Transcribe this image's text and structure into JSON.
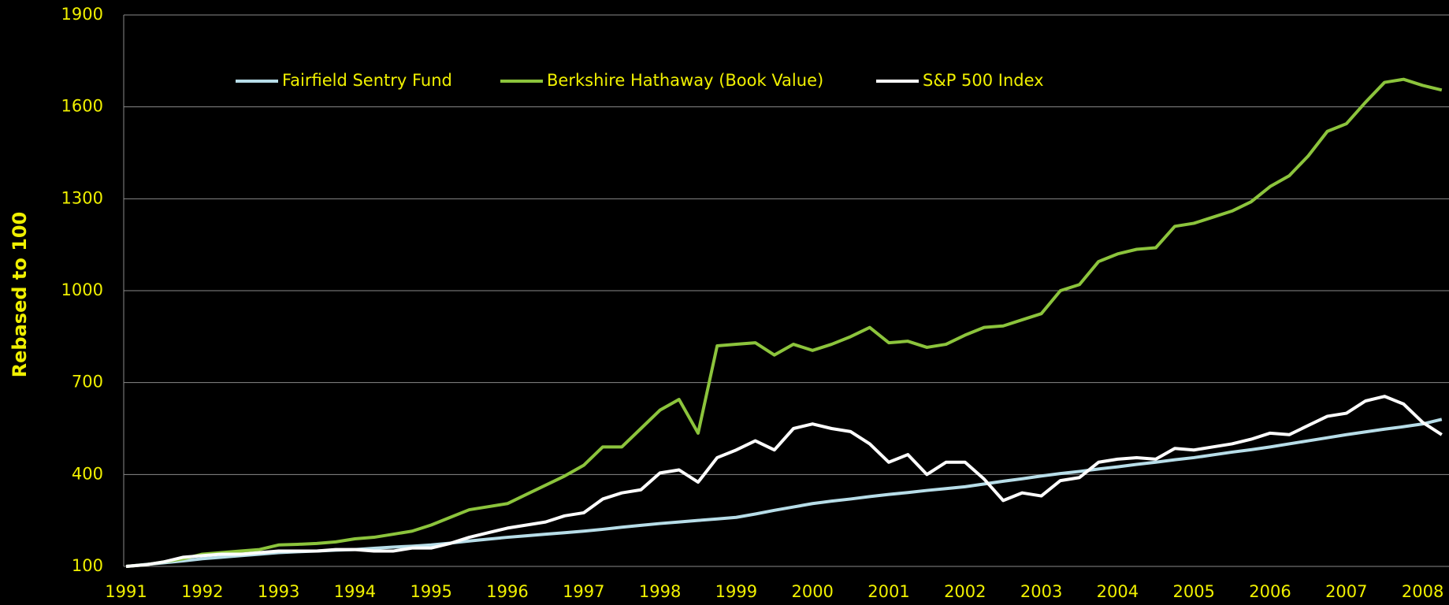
{
  "chart_data": {
    "type": "line",
    "ylabel": "Rebased to 100",
    "categories": [
      "1991",
      null,
      null,
      null,
      "1992",
      null,
      null,
      null,
      "1993",
      null,
      null,
      null,
      "1994",
      null,
      null,
      null,
      "1995",
      null,
      null,
      null,
      "1996",
      null,
      null,
      null,
      "1997",
      null,
      null,
      null,
      "1998",
      null,
      null,
      null,
      "1999",
      null,
      null,
      null,
      "2000",
      null,
      null,
      null,
      "2001",
      null,
      null,
      null,
      "2002",
      null,
      null,
      null,
      "2003",
      null,
      null,
      null,
      "2004",
      null,
      null,
      null,
      "2005",
      null,
      null,
      null,
      "2006",
      null,
      null,
      null,
      "2007",
      null,
      null,
      null,
      "2008",
      null
    ],
    "series": [
      {
        "name": "Fairfield Sentry Fund",
        "color": "#b7dde8",
        "values": [
          100,
          106,
          112,
          118,
          125,
          130,
          135,
          140,
          145,
          148,
          150,
          153,
          155,
          159,
          163,
          166,
          170,
          176,
          183,
          189,
          195,
          200,
          205,
          210,
          215,
          221,
          228,
          234,
          240,
          245,
          250,
          255,
          260,
          271,
          283,
          294,
          305,
          313,
          320,
          328,
          335,
          341,
          348,
          354,
          360,
          369,
          378,
          386,
          395,
          403,
          410,
          418,
          425,
          433,
          440,
          448,
          455,
          464,
          473,
          481,
          490,
          500,
          510,
          520,
          530,
          539,
          548,
          556,
          565,
          580
        ]
      },
      {
        "name": "Berkshire Hathaway (Book Value)",
        "color": "#8cc43c",
        "values": [
          100,
          105,
          115,
          125,
          140,
          145,
          150,
          155,
          170,
          172,
          175,
          180,
          190,
          195,
          205,
          215,
          235,
          260,
          285,
          295,
          305,
          335,
          365,
          395,
          430,
          490,
          490,
          550,
          610,
          645,
          535,
          820,
          825,
          830,
          790,
          825,
          805,
          825,
          850,
          880,
          830,
          835,
          815,
          825,
          855,
          880,
          885,
          905,
          925,
          1000,
          1020,
          1095,
          1120,
          1135,
          1140,
          1210,
          1220,
          1240,
          1260,
          1290,
          1340,
          1375,
          1440,
          1520,
          1545,
          1615,
          1680,
          1690,
          1670,
          1655
        ]
      },
      {
        "name": "S&P 500 Index",
        "color": "#ffffff",
        "values": [
          100,
          105,
          115,
          130,
          135,
          140,
          140,
          145,
          150,
          150,
          150,
          155,
          155,
          150,
          150,
          160,
          160,
          175,
          195,
          210,
          225,
          235,
          245,
          265,
          275,
          320,
          340,
          350,
          405,
          415,
          375,
          455,
          480,
          510,
          480,
          550,
          565,
          550,
          540,
          500,
          440,
          465,
          400,
          440,
          440,
          385,
          315,
          340,
          330,
          380,
          390,
          440,
          450,
          455,
          450,
          485,
          480,
          490,
          500,
          515,
          535,
          530,
          560,
          590,
          600,
          640,
          655,
          630,
          570,
          530
        ]
      }
    ],
    "ylim": [
      100,
      1900
    ],
    "yticks": [
      100,
      400,
      700,
      1000,
      1300,
      1600,
      1900
    ],
    "grid": true,
    "legend": "top"
  }
}
